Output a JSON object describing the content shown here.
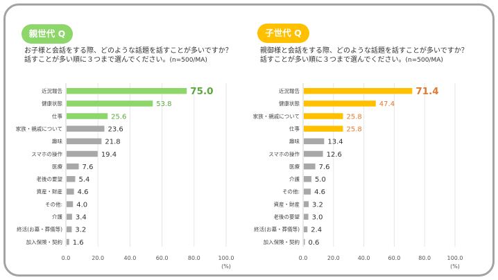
{
  "chart_data": [
    {
      "type": "bar",
      "orientation": "horizontal",
      "badge": "親世代 Q",
      "question_line1": "お子様と会話をする際、どのような話題を話すことが多いですか？",
      "question_line2": "話すことが多い順に３つまで選んでください。",
      "sample_note": "(n=500/MA)",
      "categories": [
        "近況報告",
        "健康状態",
        "仕事",
        "家族・親戚について",
        "趣味",
        "スマホの操作",
        "医療",
        "老後の要望",
        "資産・財産",
        "その他:",
        "介護",
        "終活(お墓・葬儀等)",
        "加入保険・契約"
      ],
      "value_labels": [
        "75.0",
        "53.8",
        "25.6",
        "23.6",
        "21.8",
        "19.4",
        "7.6",
        "5.4",
        "4.6",
        "4.0",
        "3.4",
        "3.2",
        "1.6"
      ],
      "values": [
        75.0,
        53.8,
        25.6,
        23.6,
        21.8,
        19.4,
        7.6,
        5.4,
        4.6,
        4.0,
        3.4,
        3.2,
        1.6
      ],
      "highlight_count": 3,
      "xlim": [
        0,
        100
      ],
      "xticks": [
        "0.0",
        "20.0",
        "40.0",
        "60.0",
        "80.0",
        "100.0"
      ],
      "xunit": "(%)",
      "grid": true,
      "colors": {
        "highlight": "#8cd66a",
        "highlight_label": "#5aa83c",
        "other": "#a8a8a8",
        "other_label": "#333333",
        "badge": "#8cd66a"
      }
    },
    {
      "type": "bar",
      "orientation": "horizontal",
      "badge": "子世代 Q",
      "question_line1": "親御様と会話をする際、どのような話題を話すことが多いですか？",
      "question_line2": "話すことが多い順に３つまで選んでください。",
      "sample_note": "(n=500/MA)",
      "categories": [
        "近況報告",
        "健康状態",
        "家族・親戚について",
        "仕事",
        "趣味",
        "スマホの操作",
        "医療",
        "介護",
        "その他:",
        "資産・財産",
        "老後の要望",
        "終活(お墓・葬儀等)",
        "加入保険・契約"
      ],
      "value_labels": [
        "71.4",
        "47.4",
        "25.8",
        "25.8",
        "13.4",
        "12.6",
        "7.6",
        "5.0",
        "4.6",
        "3.2",
        "3.0",
        "2.4",
        "0.6"
      ],
      "values": [
        71.4,
        47.4,
        25.8,
        25.8,
        13.4,
        12.6,
        7.6,
        5.0,
        4.6,
        3.2,
        3.0,
        2.4,
        0.6
      ],
      "highlight_count": 4,
      "xlim": [
        0,
        100
      ],
      "xticks": [
        "0.0",
        "20.0",
        "40.0",
        "60.0",
        "80.0",
        "100.0"
      ],
      "xunit": "(%)",
      "grid": true,
      "colors": {
        "highlight": "#ffc000",
        "highlight_label": "#e07a30",
        "other": "#a8a8a8",
        "other_label": "#333333",
        "badge": "#ffc000"
      }
    }
  ]
}
